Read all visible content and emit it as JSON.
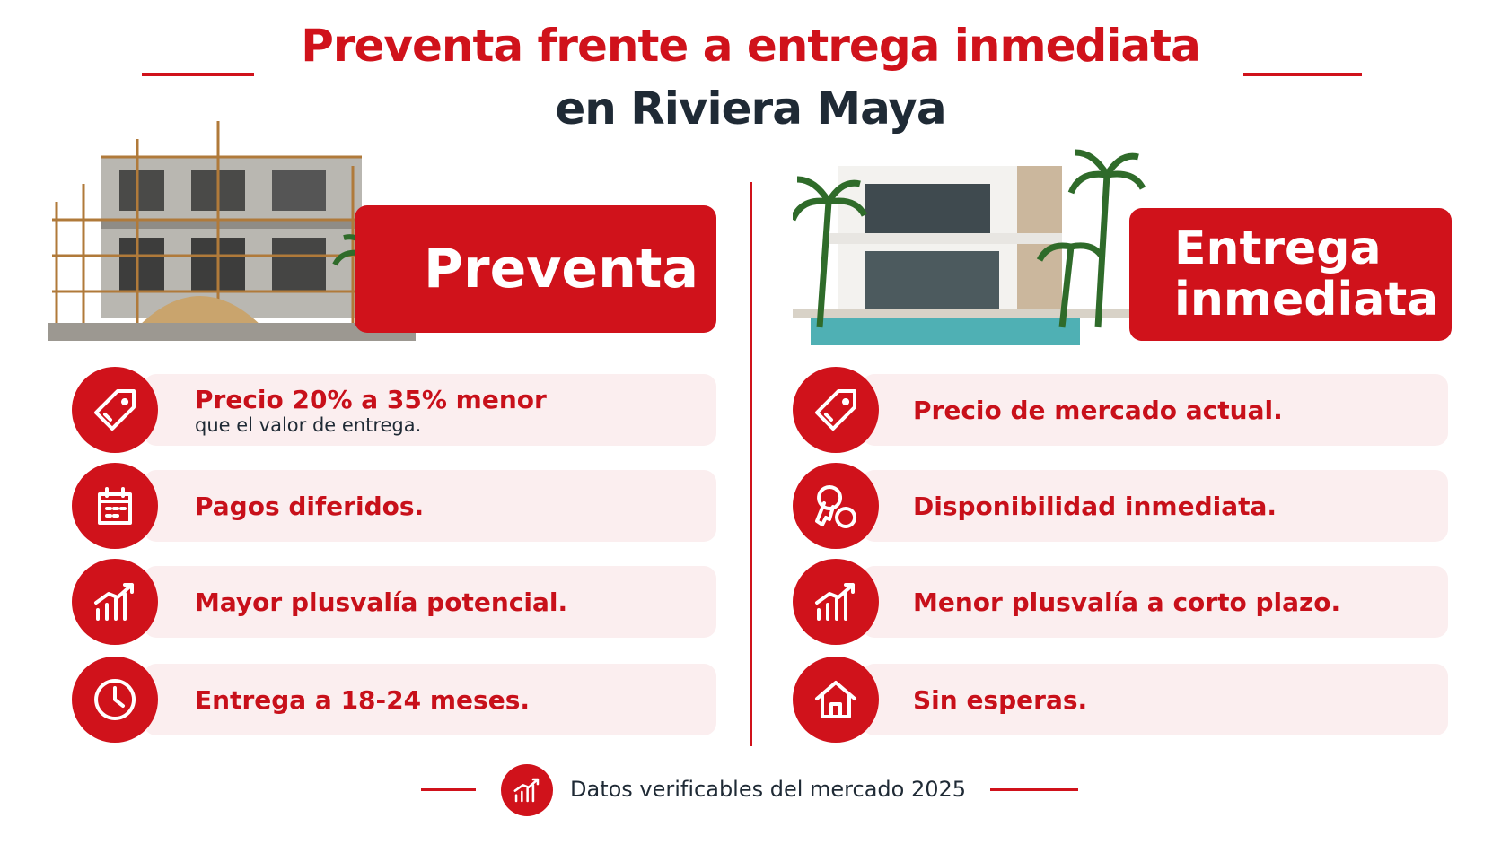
{
  "header": {
    "title_line1": "Preventa frente a entrega inmediata",
    "title_line2": "en Riviera Maya"
  },
  "columns": [
    {
      "heading": "Preventa",
      "items": [
        {
          "text": "Precio 20% a 35% menor",
          "subtext": "que el valor de entrega."
        },
        {
          "text": "Pagos diferidos."
        },
        {
          "text": "Mayor plusvalía potencial."
        },
        {
          "text": "Entrega a 18-24 meses."
        }
      ]
    },
    {
      "heading": "Entrega inmediata",
      "items": [
        {
          "text": "Precio de mercado actual."
        },
        {
          "text": "Disponibilidad inmediata."
        },
        {
          "text": "Menor plusvalía a corto plazo."
        },
        {
          "text": "Sin esperas."
        }
      ]
    }
  ],
  "footer": {
    "text": "Datos verificables del mercado 2025"
  }
}
